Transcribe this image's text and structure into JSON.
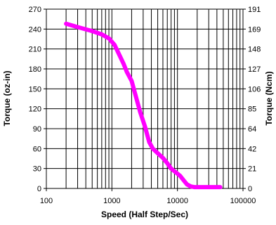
{
  "chart_data": {
    "type": "line",
    "xlabel": "Speed (Half Step/Sec)",
    "ylabel": "Torque (oz-in)",
    "y2label": "Torque (Ncm)",
    "xscale": "log",
    "xlim": [
      100,
      100000
    ],
    "ylim": [
      0,
      270
    ],
    "y2lim": [
      0,
      191
    ],
    "grid": true,
    "x_ticks": [
      "100",
      "1000",
      "10000",
      "100000"
    ],
    "y_ticks": [
      "0",
      "30",
      "60",
      "90",
      "120",
      "150",
      "180",
      "210",
      "240",
      "270"
    ],
    "y2_ticks": [
      "0",
      "21",
      "42",
      "64",
      "85",
      "106",
      "127",
      "148",
      "169",
      "191"
    ],
    "series_color": "#ff00ff",
    "series": [
      {
        "x": [
          200,
          300,
          500,
          700,
          900,
          1100,
          1300,
          1500,
          1700,
          2000,
          2300,
          2700,
          3200,
          3700,
          4200,
          5000,
          6000,
          7000,
          8000,
          9500,
          11000,
          12500,
          14000,
          16000,
          18000,
          25000,
          45000
        ],
        "y": [
          248,
          243,
          237,
          232,
          226,
          216,
          201,
          188,
          175,
          162,
          140,
          115,
          93,
          70,
          60,
          53,
          46,
          38,
          30,
          24,
          19,
          12,
          6,
          3,
          2,
          2,
          2
        ]
      }
    ]
  }
}
